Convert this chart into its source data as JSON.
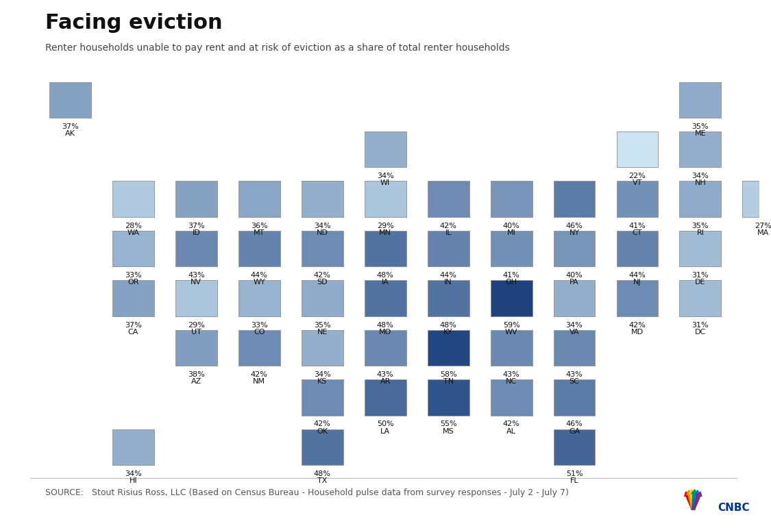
{
  "title": "Facing eviction",
  "subtitle": "Renter households unable to pay rent and at risk of eviction as a share of total renter households",
  "source": "SOURCE:   Stout Risius Ross, LLC (Based on Census Bureau - Household pulse data from survey responses - July 2 - July 7)",
  "states": [
    {
      "abbr": "AK",
      "pct": 37,
      "col": 0,
      "row": 0
    },
    {
      "abbr": "ME",
      "pct": 35,
      "col": 10,
      "row": 0
    },
    {
      "abbr": "WI",
      "pct": 34,
      "col": 5,
      "row": 1
    },
    {
      "abbr": "VT",
      "pct": 22,
      "col": 9,
      "row": 1
    },
    {
      "abbr": "NH",
      "pct": 34,
      "col": 10,
      "row": 1
    },
    {
      "abbr": "WA",
      "pct": 28,
      "col": 1,
      "row": 2
    },
    {
      "abbr": "ID",
      "pct": 37,
      "col": 2,
      "row": 2
    },
    {
      "abbr": "MT",
      "pct": 36,
      "col": 3,
      "row": 2
    },
    {
      "abbr": "ND",
      "pct": 34,
      "col": 4,
      "row": 2
    },
    {
      "abbr": "MN",
      "pct": 29,
      "col": 5,
      "row": 2
    },
    {
      "abbr": "IL",
      "pct": 42,
      "col": 6,
      "row": 2
    },
    {
      "abbr": "MI",
      "pct": 40,
      "col": 7,
      "row": 2
    },
    {
      "abbr": "NY",
      "pct": 46,
      "col": 8,
      "row": 2
    },
    {
      "abbr": "CT",
      "pct": 41,
      "col": 9,
      "row": 2
    },
    {
      "abbr": "RI",
      "pct": 35,
      "col": 10,
      "row": 2
    },
    {
      "abbr": "MA",
      "pct": 27,
      "col": 11,
      "row": 2
    },
    {
      "abbr": "OR",
      "pct": 33,
      "col": 1,
      "row": 3
    },
    {
      "abbr": "NV",
      "pct": 43,
      "col": 2,
      "row": 3
    },
    {
      "abbr": "WY",
      "pct": 44,
      "col": 3,
      "row": 3
    },
    {
      "abbr": "SD",
      "pct": 42,
      "col": 4,
      "row": 3
    },
    {
      "abbr": "IA",
      "pct": 48,
      "col": 5,
      "row": 3
    },
    {
      "abbr": "IN",
      "pct": 44,
      "col": 6,
      "row": 3
    },
    {
      "abbr": "OH",
      "pct": 41,
      "col": 7,
      "row": 3
    },
    {
      "abbr": "PA",
      "pct": 40,
      "col": 8,
      "row": 3
    },
    {
      "abbr": "NJ",
      "pct": 44,
      "col": 9,
      "row": 3
    },
    {
      "abbr": "DE",
      "pct": 31,
      "col": 10,
      "row": 3
    },
    {
      "abbr": "CA",
      "pct": 37,
      "col": 1,
      "row": 4
    },
    {
      "abbr": "UT",
      "pct": 29,
      "col": 2,
      "row": 4
    },
    {
      "abbr": "CO",
      "pct": 33,
      "col": 3,
      "row": 4
    },
    {
      "abbr": "NE",
      "pct": 35,
      "col": 4,
      "row": 4
    },
    {
      "abbr": "MO",
      "pct": 48,
      "col": 5,
      "row": 4
    },
    {
      "abbr": "KY",
      "pct": 48,
      "col": 6,
      "row": 4
    },
    {
      "abbr": "WV",
      "pct": 59,
      "col": 7,
      "row": 4
    },
    {
      "abbr": "VA",
      "pct": 34,
      "col": 8,
      "row": 4
    },
    {
      "abbr": "MD",
      "pct": 42,
      "col": 9,
      "row": 4
    },
    {
      "abbr": "DC",
      "pct": 31,
      "col": 10,
      "row": 4
    },
    {
      "abbr": "AZ",
      "pct": 38,
      "col": 2,
      "row": 5
    },
    {
      "abbr": "NM",
      "pct": 42,
      "col": 3,
      "row": 5
    },
    {
      "abbr": "KS",
      "pct": 34,
      "col": 4,
      "row": 5
    },
    {
      "abbr": "AR",
      "pct": 43,
      "col": 5,
      "row": 5
    },
    {
      "abbr": "TN",
      "pct": 58,
      "col": 6,
      "row": 5
    },
    {
      "abbr": "NC",
      "pct": 43,
      "col": 7,
      "row": 5
    },
    {
      "abbr": "SC",
      "pct": 43,
      "col": 8,
      "row": 5
    },
    {
      "abbr": "OK",
      "pct": 42,
      "col": 4,
      "row": 6
    },
    {
      "abbr": "LA",
      "pct": 50,
      "col": 5,
      "row": 6
    },
    {
      "abbr": "MS",
      "pct": 55,
      "col": 6,
      "row": 6
    },
    {
      "abbr": "AL",
      "pct": 42,
      "col": 7,
      "row": 6
    },
    {
      "abbr": "GA",
      "pct": 46,
      "col": 8,
      "row": 6
    },
    {
      "abbr": "HI",
      "pct": 34,
      "col": 1,
      "row": 7
    },
    {
      "abbr": "TX",
      "pct": 48,
      "col": 4,
      "row": 7
    },
    {
      "abbr": "FL",
      "pct": 51,
      "col": 8,
      "row": 7
    }
  ],
  "background_color": "#ffffff",
  "title_fontsize": 22,
  "subtitle_fontsize": 10,
  "source_fontsize": 9,
  "color_light": [
    0.8,
    0.89,
    0.95
  ],
  "color_dark": [
    0.12,
    0.26,
    0.49
  ],
  "pct_min": 22,
  "pct_max": 59
}
